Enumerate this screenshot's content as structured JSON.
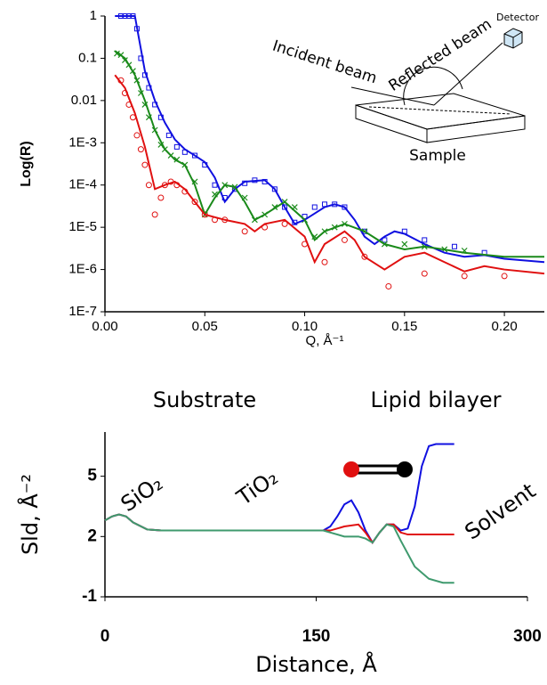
{
  "chart_data": [
    {
      "type": "line",
      "ylabel": "Log(R)",
      "xlabel": "Q, Å⁻¹",
      "yscale": "log",
      "xlim": [
        0,
        0.22
      ],
      "ylim": [
        1e-07,
        1
      ],
      "xticks": [
        {
          "value": 0,
          "label": "0.00"
        },
        {
          "value": 0.05,
          "label": "0.05"
        },
        {
          "value": 0.1,
          "label": "0.10"
        },
        {
          "value": 0.15,
          "label": "0.15"
        },
        {
          "value": 0.2,
          "label": "0.20"
        }
      ],
      "yticks": [
        1,
        0.1,
        0.01,
        {
          "value": 0.001,
          "label": "1E-3"
        },
        {
          "value": 0.0001,
          "label": "1E-4"
        },
        {
          "value": 1e-05,
          "label": "1E-5"
        },
        {
          "value": 1e-06,
          "label": "1E-6"
        },
        {
          "value": 1e-07,
          "label": "1E-7"
        }
      ],
      "annotations": [
        "Incident beam",
        "Reflected beam",
        "Detector",
        "Sample"
      ],
      "series": [
        {
          "mode": "markers",
          "marker": "square",
          "color": "#1010e0",
          "x": [
            0.008,
            0.01,
            0.012,
            0.014,
            0.016,
            0.018,
            0.02,
            0.022,
            0.025,
            0.028,
            0.032,
            0.036,
            0.04,
            0.045,
            0.05,
            0.055,
            0.06,
            0.065,
            0.07,
            0.075,
            0.08,
            0.085,
            0.09,
            0.095,
            0.1,
            0.105,
            0.11,
            0.115,
            0.12,
            0.13,
            0.14,
            0.15,
            0.16,
            0.175,
            0.19
          ],
          "values": [
            1,
            1,
            1,
            1,
            0.5,
            0.1,
            0.04,
            0.02,
            0.008,
            0.004,
            0.0015,
            0.0008,
            0.0006,
            0.0005,
            0.0003,
            0.0001,
            5e-05,
            8e-05,
            0.00011,
            0.00013,
            0.00012,
            8e-05,
            3e-05,
            1.3e-05,
            1.8e-05,
            3e-05,
            3.5e-05,
            3.5e-05,
            3e-05,
            8e-06,
            5e-06,
            8e-06,
            5e-06,
            3.5e-06,
            2.5e-06
          ]
        },
        {
          "mode": "markers",
          "marker": "x",
          "color": "#1a8a1a",
          "x": [
            0.006,
            0.008,
            0.01,
            0.012,
            0.014,
            0.016,
            0.018,
            0.02,
            0.022,
            0.025,
            0.028,
            0.03,
            0.033,
            0.036,
            0.04,
            0.045,
            0.05,
            0.055,
            0.06,
            0.065,
            0.07,
            0.075,
            0.08,
            0.085,
            0.09,
            0.095,
            0.1,
            0.105,
            0.11,
            0.115,
            0.12,
            0.13,
            0.14,
            0.15,
            0.16,
            0.17,
            0.18
          ],
          "values": [
            0.13,
            0.12,
            0.09,
            0.07,
            0.05,
            0.03,
            0.015,
            0.008,
            0.004,
            0.002,
            0.0009,
            0.0007,
            0.0005,
            0.0004,
            0.0003,
            0.00012,
            2e-05,
            6e-05,
            0.0001,
            9e-05,
            5e-05,
            1.5e-05,
            2e-05,
            3e-05,
            4e-05,
            3e-05,
            1.5e-05,
            6e-06,
            8e-06,
            1e-05,
            1.2e-05,
            8e-06,
            4e-06,
            4e-06,
            3.5e-06,
            3e-06,
            2.8e-06
          ]
        },
        {
          "mode": "markers",
          "marker": "circle",
          "color": "#e01010",
          "x": [
            0.008,
            0.01,
            0.012,
            0.014,
            0.016,
            0.018,
            0.02,
            0.022,
            0.025,
            0.028,
            0.03,
            0.033,
            0.036,
            0.04,
            0.045,
            0.05,
            0.055,
            0.06,
            0.07,
            0.08,
            0.09,
            0.1,
            0.11,
            0.12,
            0.13,
            0.142,
            0.16,
            0.18,
            0.2
          ],
          "values": [
            0.03,
            0.015,
            0.008,
            0.004,
            0.0015,
            0.0007,
            0.0003,
            0.0001,
            2e-05,
            5e-05,
            0.0001,
            0.00012,
            0.0001,
            7e-05,
            4e-05,
            2e-05,
            1.5e-05,
            1.5e-05,
            8e-06,
            1e-05,
            1.2e-05,
            4e-06,
            1.5e-06,
            5e-06,
            2e-06,
            4e-07,
            8e-07,
            7e-07,
            7e-07
          ]
        },
        {
          "mode": "line",
          "color": "#1010e0",
          "x": [
            0.005,
            0.015,
            0.017,
            0.02,
            0.025,
            0.03,
            0.035,
            0.04,
            0.045,
            0.05,
            0.055,
            0.06,
            0.065,
            0.07,
            0.08,
            0.085,
            0.09,
            0.095,
            0.1,
            0.11,
            0.115,
            0.12,
            0.125,
            0.13,
            0.135,
            0.14,
            0.145,
            0.15,
            0.16,
            0.17,
            0.18,
            0.19,
            0.2,
            0.22
          ],
          "values": [
            1,
            1,
            0.3,
            0.05,
            0.01,
            0.003,
            0.0012,
            0.0007,
            0.0005,
            0.00035,
            0.00015,
            4e-05,
            8e-05,
            0.00012,
            0.00013,
            8e-05,
            3e-05,
            1.2e-05,
            1.5e-05,
            3e-05,
            3.5e-05,
            3e-05,
            1.5e-05,
            6e-06,
            4e-06,
            6e-06,
            8e-06,
            7e-06,
            4e-06,
            2.5e-06,
            2e-06,
            2.2e-06,
            1.8e-06,
            1.5e-06
          ]
        },
        {
          "mode": "line",
          "color": "#1a8a1a",
          "x": [
            0.005,
            0.01,
            0.015,
            0.02,
            0.025,
            0.03,
            0.035,
            0.04,
            0.045,
            0.05,
            0.055,
            0.06,
            0.065,
            0.07,
            0.075,
            0.08,
            0.09,
            0.1,
            0.105,
            0.11,
            0.12,
            0.13,
            0.14,
            0.15,
            0.16,
            0.18,
            0.2,
            0.22
          ],
          "values": [
            0.15,
            0.1,
            0.04,
            0.01,
            0.002,
            0.0007,
            0.0004,
            0.0003,
            0.0001,
            2e-05,
            5e-05,
            0.0001,
            9e-05,
            4e-05,
            1.5e-05,
            2e-05,
            4e-05,
            1.5e-05,
            5e-06,
            8e-06,
            1.2e-05,
            8e-06,
            4e-06,
            3e-06,
            3.5e-06,
            2.5e-06,
            2e-06,
            2e-06
          ]
        },
        {
          "mode": "line",
          "color": "#e01010",
          "x": [
            0.005,
            0.01,
            0.015,
            0.02,
            0.025,
            0.03,
            0.035,
            0.04,
            0.045,
            0.05,
            0.06,
            0.07,
            0.075,
            0.08,
            0.09,
            0.1,
            0.105,
            0.11,
            0.12,
            0.125,
            0.13,
            0.14,
            0.15,
            0.16,
            0.17,
            0.18,
            0.19,
            0.2,
            0.22
          ],
          "values": [
            0.04,
            0.02,
            0.005,
            0.0008,
            8e-05,
            0.0001,
            0.00012,
            8e-05,
            4e-05,
            2e-05,
            1.5e-05,
            1.2e-05,
            8e-06,
            1.2e-05,
            1.5e-05,
            6e-06,
            1.5e-06,
            4e-06,
            8e-06,
            5e-06,
            2e-06,
            1e-06,
            2e-06,
            2.5e-06,
            1.5e-06,
            9e-07,
            1.2e-06,
            1e-06,
            8e-07
          ]
        }
      ]
    },
    {
      "type": "line",
      "ylabel": "Sld, Å⁻²",
      "xlabel": "Distance, Å",
      "xlim": [
        0,
        300
      ],
      "ylim": [
        -1,
        7.2
      ],
      "xticks": [
        0,
        150,
        300
      ],
      "yticks": [
        -1,
        2,
        5
      ],
      "annotations": [
        "Substrate",
        "Lipid bilayer",
        "SiO₂",
        "TiO₂",
        "Solvent"
      ],
      "series": [
        {
          "mode": "line",
          "color": "#1010e0",
          "x": [
            0,
            5,
            10,
            15,
            20,
            30,
            40,
            150,
            155,
            160,
            165,
            170,
            175,
            180,
            185,
            190,
            195,
            200,
            205,
            210,
            215,
            220,
            225,
            230,
            235,
            248
          ],
          "values": [
            2.8,
            3.0,
            3.1,
            3.0,
            2.7,
            2.35,
            2.3,
            2.3,
            2.3,
            2.5,
            3.0,
            3.6,
            3.8,
            3.2,
            2.3,
            1.7,
            2.2,
            2.6,
            2.6,
            2.3,
            2.4,
            3.5,
            5.5,
            6.5,
            6.6,
            6.6
          ]
        },
        {
          "mode": "line",
          "color": "#e01010",
          "x": [
            0,
            5,
            10,
            15,
            20,
            30,
            40,
            150,
            155,
            160,
            170,
            180,
            185,
            190,
            195,
            200,
            205,
            210,
            215,
            248
          ],
          "values": [
            2.8,
            3.0,
            3.1,
            3.0,
            2.7,
            2.35,
            2.3,
            2.3,
            2.3,
            2.3,
            2.5,
            2.6,
            2.2,
            1.7,
            2.2,
            2.6,
            2.6,
            2.2,
            2.1,
            2.1
          ]
        },
        {
          "mode": "line",
          "color": "#3f9a6e",
          "x": [
            0,
            5,
            10,
            15,
            20,
            30,
            40,
            150,
            155,
            160,
            170,
            180,
            185,
            190,
            195,
            200,
            205,
            210,
            220,
            230,
            240,
            248
          ],
          "values": [
            2.8,
            3.0,
            3.1,
            3.0,
            2.7,
            2.35,
            2.3,
            2.3,
            2.3,
            2.2,
            2.0,
            2.0,
            1.9,
            1.7,
            2.2,
            2.6,
            2.5,
            1.8,
            0.5,
            -0.1,
            -0.3,
            -0.3
          ]
        }
      ]
    }
  ]
}
